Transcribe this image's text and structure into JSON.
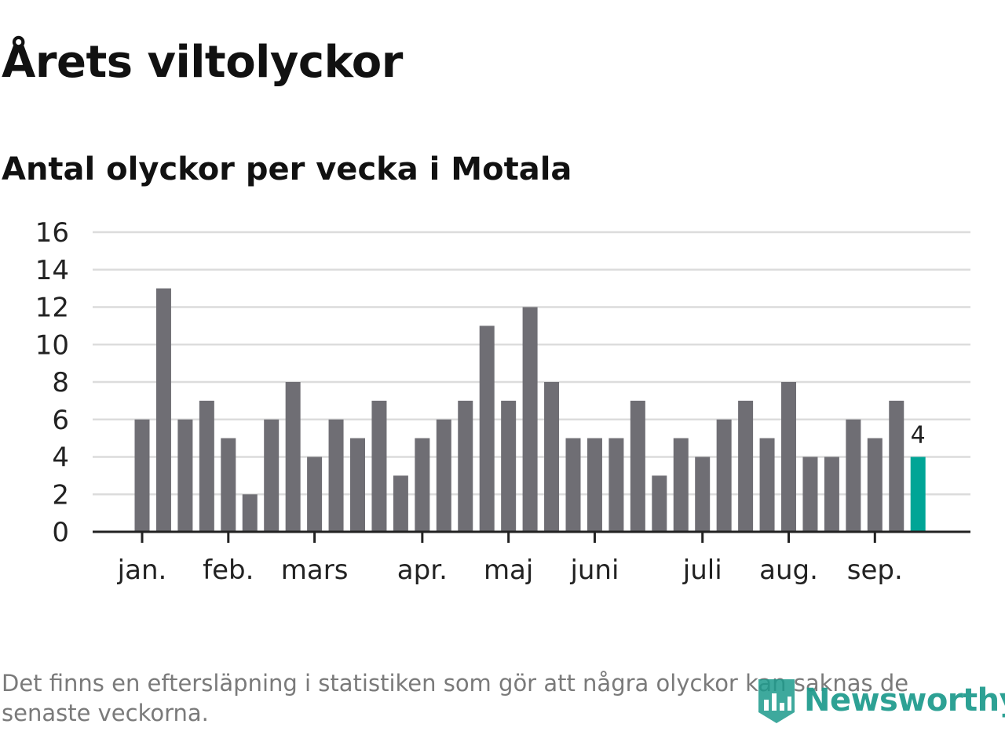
{
  "header": {
    "title": "Årets viltolyckor",
    "subtitle": "Antal olyckor per vecka i Motala"
  },
  "colors": {
    "bar": "#6f6e74",
    "highlight": "#00a596",
    "grid": "#dcdcdc",
    "axis": "#222222",
    "brand": "#1c9a8c"
  },
  "chart_data": {
    "type": "bar",
    "title": "Antal olyckor per vecka i Motala",
    "xlabel": "",
    "ylabel": "",
    "ylim": [
      0,
      16
    ],
    "yticks": [
      0,
      2,
      4,
      6,
      8,
      10,
      12,
      14,
      16
    ],
    "grid": true,
    "values": [
      6,
      13,
      6,
      7,
      5,
      2,
      6,
      8,
      4,
      6,
      5,
      7,
      3,
      5,
      6,
      7,
      11,
      7,
      12,
      8,
      5,
      5,
      5,
      7,
      3,
      5,
      4,
      6,
      7,
      5,
      8,
      4,
      4,
      6,
      5,
      7,
      4
    ],
    "highlight_index": 36,
    "highlight_label": "4",
    "month_labels": [
      {
        "label": "jan.",
        "bar_index": 0
      },
      {
        "label": "feb.",
        "bar_index": 4
      },
      {
        "label": "mars",
        "bar_index": 8
      },
      {
        "label": "apr.",
        "bar_index": 13
      },
      {
        "label": "maj",
        "bar_index": 17
      },
      {
        "label": "juni",
        "bar_index": 21
      },
      {
        "label": "juli",
        "bar_index": 26
      },
      {
        "label": "aug.",
        "bar_index": 30
      },
      {
        "label": "sep.",
        "bar_index": 34
      }
    ]
  },
  "footer": {
    "note": "Det finns en eftersläpning i statistiken som gör att några olyckor kan saknas de senaste veckorna.",
    "brand": "Newsworthy",
    "brand_icon": "newsworthy-logo-icon"
  }
}
